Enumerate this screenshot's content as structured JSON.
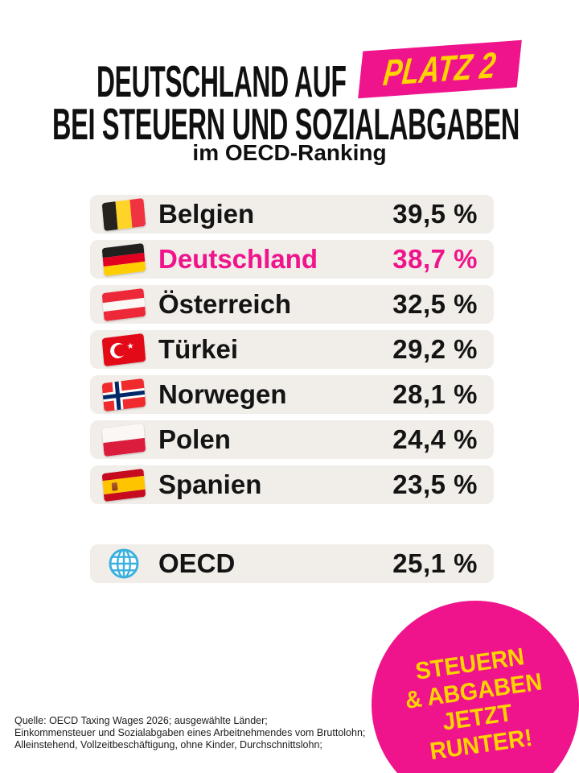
{
  "header": {
    "title_line1": "DEUTSCHLAND AUF",
    "badge_label": "PLATZ 2",
    "title_line2": "BEI STEUERN UND SOZIALABGABEN",
    "subtitle": "im OECD-Ranking"
  },
  "colors": {
    "accent_pink": "#F0148C",
    "accent_yellow": "#FFD400",
    "row_background": "#F1EDE9",
    "text": "#101010"
  },
  "ranking": {
    "rows": [
      {
        "country": "Belgien",
        "value": "39,5 %",
        "flag": "belgium-flag",
        "highlight": false
      },
      {
        "country": "Deutschland",
        "value": "38,7 %",
        "flag": "germany-flag",
        "highlight": true
      },
      {
        "country": "Österreich",
        "value": "32,5 %",
        "flag": "austria-flag",
        "highlight": false
      },
      {
        "country": "Türkei",
        "value": "29,2 %",
        "flag": "turkey-flag",
        "highlight": false
      },
      {
        "country": "Norwegen",
        "value": "28,1 %",
        "flag": "norway-flag",
        "highlight": false
      },
      {
        "country": "Polen",
        "value": "24,4 %",
        "flag": "poland-flag",
        "highlight": false
      },
      {
        "country": "Spanien",
        "value": "23,5 %",
        "flag": "spain-flag",
        "highlight": false
      }
    ],
    "summary_row": {
      "label": "OECD",
      "value": "25,1 %",
      "icon": "globe-icon"
    }
  },
  "sticker": {
    "lines": [
      "STEUERN",
      "& ABGABEN",
      "JETZT",
      "RUNTER!"
    ]
  },
  "source": {
    "lines": [
      "Quelle: OECD Taxing Wages 2026; ausgewählte Länder;",
      "Einkommensteuer und Sozialabgaben eines Arbeitnehmendes vom Bruttolohn;",
      "Alleinstehend, Vollzeitbeschäftigung, ohne Kinder, Durchschnittslohn;"
    ]
  },
  "chart_data": {
    "type": "table",
    "title": "Deutschland auf Platz 2 bei Steuern und Sozialabgaben im OECD-Ranking",
    "categories": [
      "Belgien",
      "Deutschland",
      "Österreich",
      "Türkei",
      "Norwegen",
      "Polen",
      "Spanien",
      "OECD"
    ],
    "values": [
      39.5,
      38.7,
      32.5,
      29.2,
      28.1,
      24.4,
      23.5,
      25.1
    ],
    "unit": "%",
    "highlight": "Deutschland",
    "source": "OECD Taxing Wages 2026"
  }
}
